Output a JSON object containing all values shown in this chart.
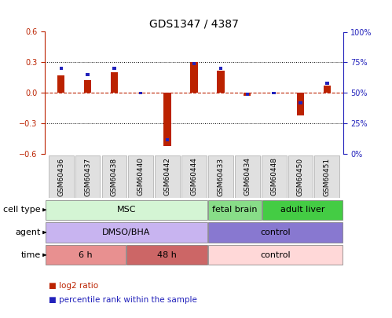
{
  "title": "GDS1347 / 4387",
  "samples": [
    "GSM60436",
    "GSM60437",
    "GSM60438",
    "GSM60440",
    "GSM60442",
    "GSM60444",
    "GSM60433",
    "GSM60434",
    "GSM60448",
    "GSM60450",
    "GSM60451"
  ],
  "log2_ratio": [
    0.17,
    0.13,
    0.2,
    0.0,
    -0.52,
    0.3,
    0.22,
    -0.03,
    0.0,
    -0.22,
    0.07
  ],
  "percentile_rank": [
    70,
    65,
    70,
    50,
    12,
    74,
    70,
    49,
    50,
    42,
    58
  ],
  "ylim_left": [
    -0.6,
    0.6
  ],
  "ylim_right": [
    0,
    100
  ],
  "cell_type_groups": [
    {
      "label": "MSC",
      "start": 0,
      "end": 5,
      "color": "#d4f5d4"
    },
    {
      "label": "fetal brain",
      "start": 6,
      "end": 7,
      "color": "#88dd88"
    },
    {
      "label": "adult liver",
      "start": 8,
      "end": 10,
      "color": "#44cc44"
    }
  ],
  "agent_groups": [
    {
      "label": "DMSO/BHA",
      "start": 0,
      "end": 5,
      "color": "#c8b4f0"
    },
    {
      "label": "control",
      "start": 6,
      "end": 10,
      "color": "#8878d0"
    }
  ],
  "time_groups": [
    {
      "label": "6 h",
      "start": 0,
      "end": 2,
      "color": "#e89090"
    },
    {
      "label": "48 h",
      "start": 3,
      "end": 5,
      "color": "#cc6666"
    },
    {
      "label": "control",
      "start": 6,
      "end": 10,
      "color": "#ffd8d8"
    }
  ],
  "bar_color_red": "#bb2200",
  "bar_color_blue": "#2222bb",
  "legend_items": [
    {
      "label": "log2 ratio",
      "color": "#bb2200"
    },
    {
      "label": "percentile rank within the sample",
      "color": "#2222bb"
    }
  ],
  "title_fontsize": 10,
  "tick_fontsize": 7,
  "label_fontsize": 8,
  "row_label_fontsize": 8,
  "sample_fontsize": 6.5
}
